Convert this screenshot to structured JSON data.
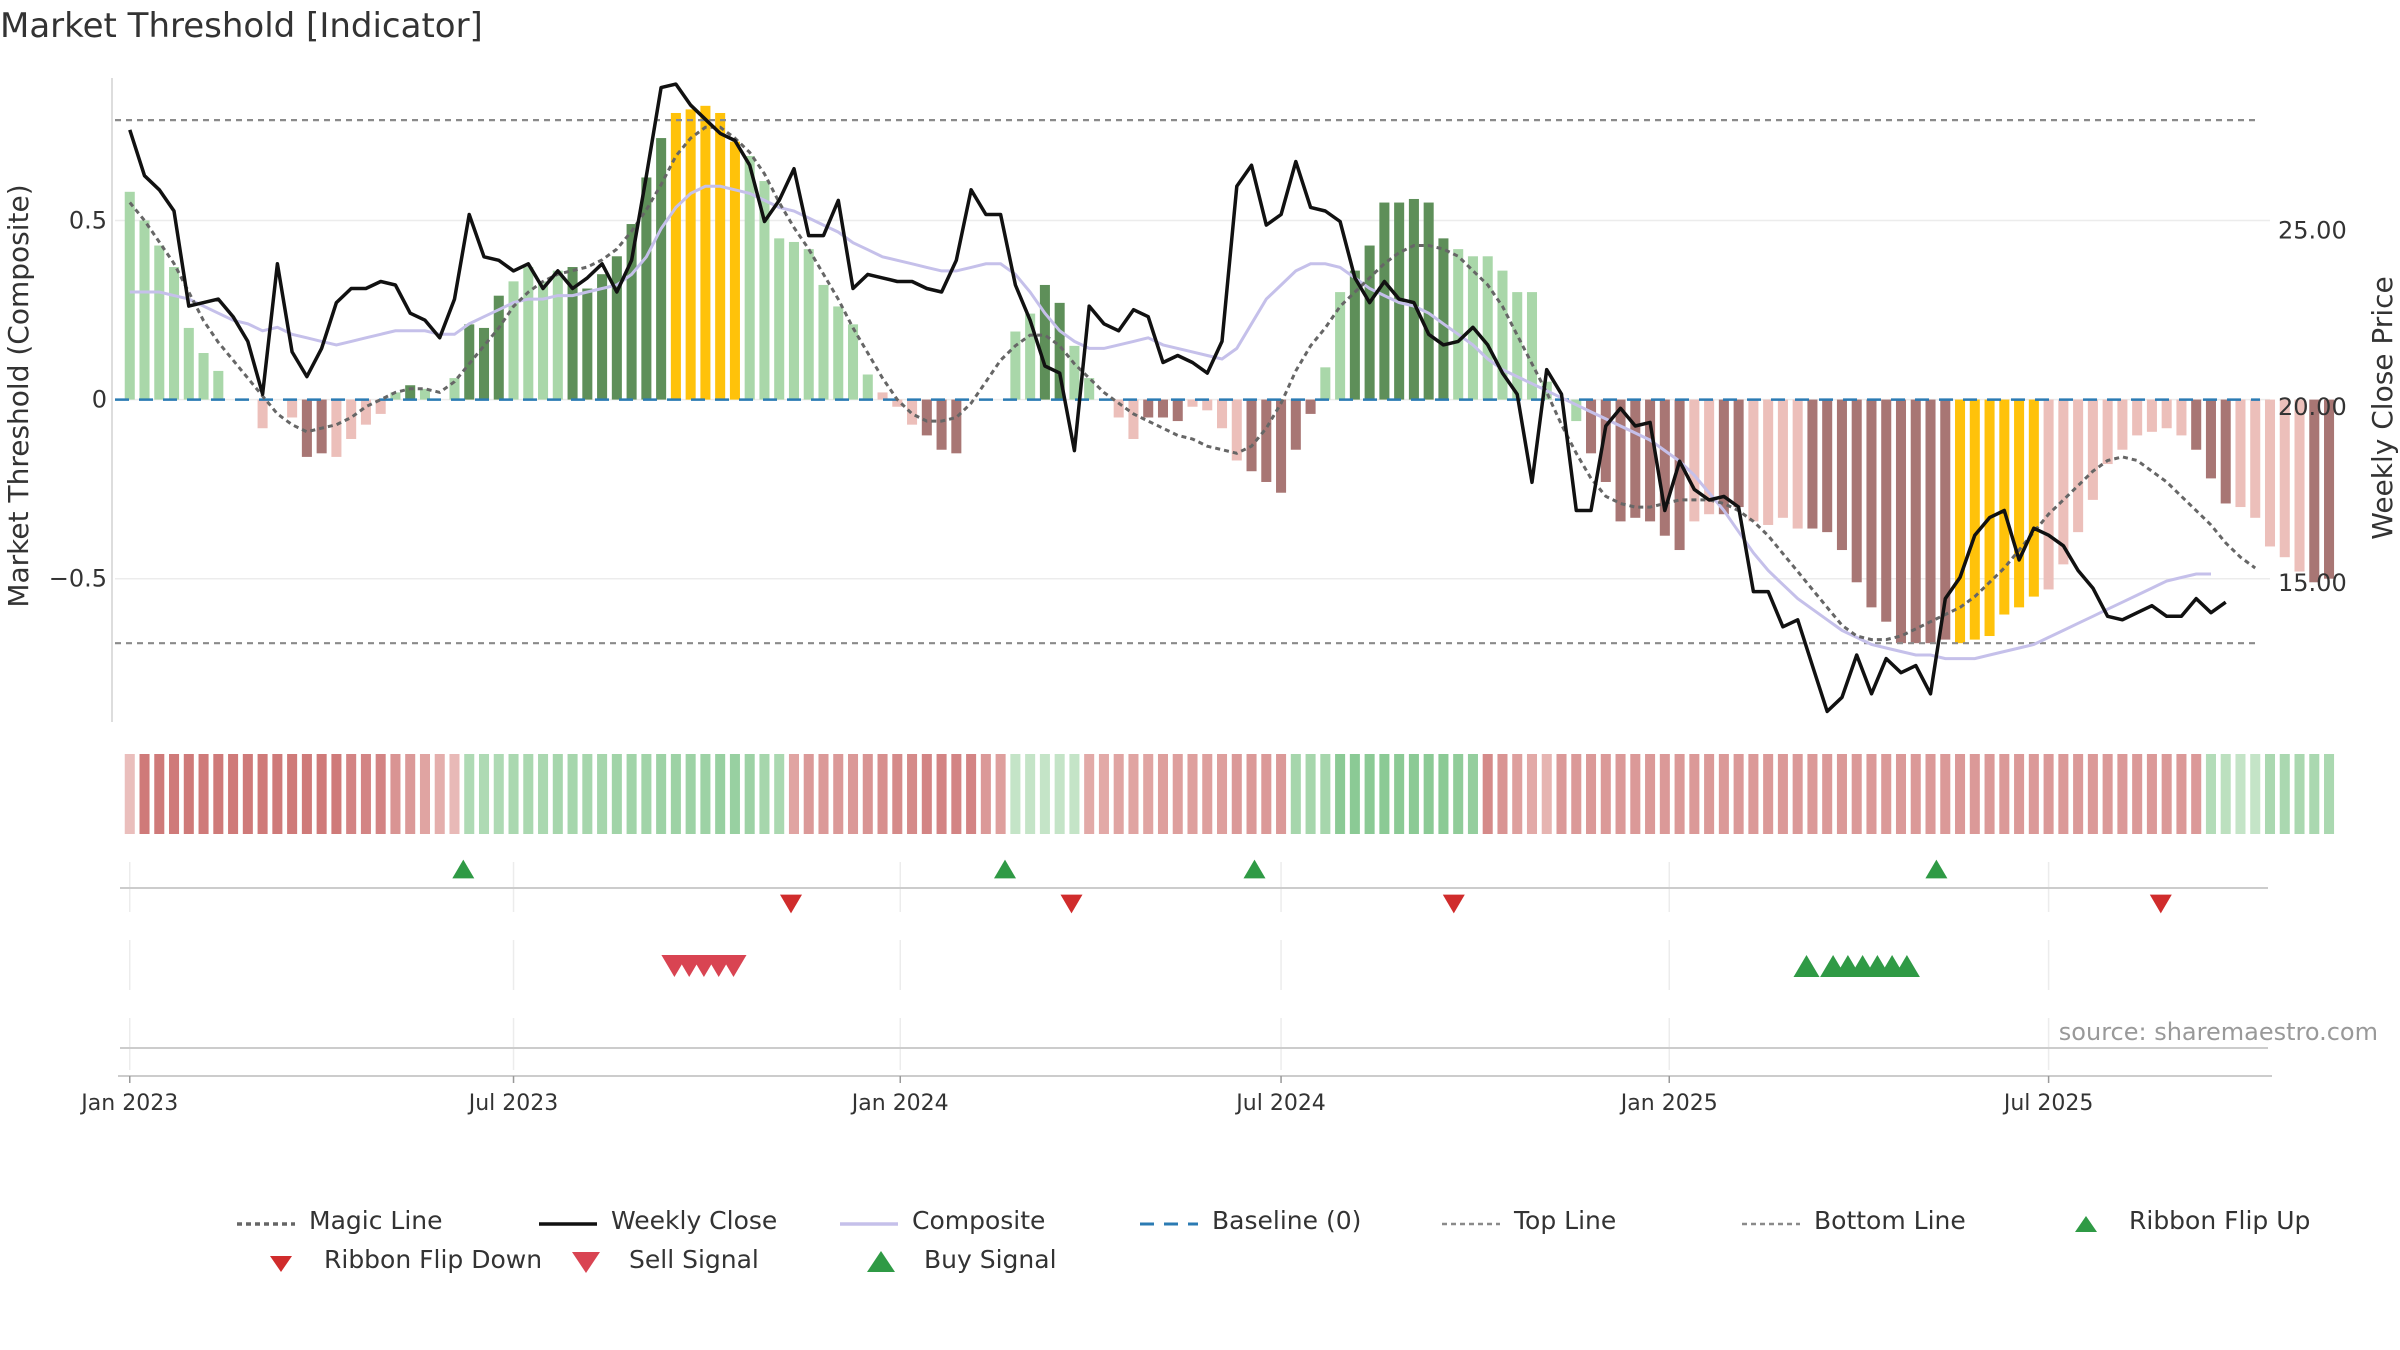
{
  "title": "Market Threshold [Indicator]",
  "source": "source: sharemaestro.com",
  "colors": {
    "bar_pos_light": "#a9d7a9",
    "bar_pos_dark": "#5e8f59",
    "bar_neg_light": "#ecbfba",
    "bar_neg_dark": "#a87674",
    "bar_extreme": "#ffc20a",
    "weekly_close": "#111111",
    "composite": "#c5c0ea",
    "magic_line": "#666666",
    "baseline": "#2b7bb3",
    "threshold_lines": "#8a8a8a",
    "buy": "#2f9a45",
    "sell": "#d94452",
    "flip_up": "#2f9a45",
    "flip_down": "#d02c2c",
    "ribbon_red_strong": "#c96a6a",
    "ribbon_red_light": "#f2d3d0",
    "ribbon_green_strong": "#7ec48a",
    "ribbon_green_light": "#d6ecd6"
  },
  "chart_data": {
    "type": "bar",
    "title": "Market Threshold [Indicator]",
    "ylabel": "Market Threshold (Composite)",
    "y2label": "Weekly Close Price",
    "ylim": [
      -0.9,
      0.92
    ],
    "y2lim": [
      11.0,
      29.5
    ],
    "yticks": [
      {
        "v": 0.5,
        "label": "0.5"
      },
      {
        "v": 0,
        "label": "0"
      },
      {
        "v": -0.5,
        "label": "−0.5"
      }
    ],
    "y2ticks": [
      {
        "v": 25,
        "label": "25.00"
      },
      {
        "v": 20,
        "label": "20.00"
      },
      {
        "v": 15,
        "label": "15.00"
      }
    ],
    "x_range": [
      -1,
      145
    ],
    "x_ticks": [
      {
        "label": "Jan 2023",
        "week": 0
      },
      {
        "label": "Jul 2023",
        "week": 26
      },
      {
        "label": "Jan 2024",
        "week": 52.2
      },
      {
        "label": "Jul 2024",
        "week": 78
      },
      {
        "label": "Jan 2025",
        "week": 104.3
      },
      {
        "label": "Jul 2025",
        "week": 130
      }
    ],
    "top_line": 0.78,
    "bottom_line": -0.68,
    "baseline": 0,
    "bar_kind_codes": {
      "g": "positive light",
      "G": "positive dark",
      "r": "negative light",
      "R": "negative dark",
      "Y": "extreme"
    },
    "bar_values": [
      0.58,
      0.5,
      0.43,
      0.37,
      0.2,
      0.13,
      0.08,
      0,
      0,
      -0.08,
      0,
      -0.05,
      -0.16,
      -0.15,
      -0.16,
      -0.11,
      -0.07,
      -0.04,
      0.02,
      0.04,
      0.03,
      0,
      0.06,
      0.21,
      0.2,
      0.29,
      0.33,
      0.37,
      0.33,
      0.36,
      0.37,
      0.31,
      0.35,
      0.4,
      0.49,
      0.62,
      0.73,
      0.8,
      0.81,
      0.82,
      0.8,
      0.72,
      0.68,
      0.61,
      0.45,
      0.44,
      0.42,
      0.32,
      0.26,
      0.21,
      0.07,
      0.02,
      -0.02,
      -0.07,
      -0.1,
      -0.14,
      -0.15,
      0,
      0,
      0,
      0.19,
      0.24,
      0.32,
      0.27,
      0.15,
      0.06,
      0,
      -0.05,
      -0.11,
      -0.05,
      -0.05,
      -0.06,
      -0.02,
      -0.03,
      -0.08,
      -0.17,
      -0.2,
      -0.23,
      -0.26,
      -0.14,
      -0.04,
      0.09,
      0.3,
      0.36,
      0.43,
      0.55,
      0.55,
      0.56,
      0.55,
      0.45,
      0.42,
      0.4,
      0.4,
      0.36,
      0.3,
      0.3,
      0.05,
      0,
      -0.06,
      -0.15,
      -0.23,
      -0.34,
      -0.33,
      -0.34,
      -0.38,
      -0.42,
      -0.34,
      -0.32,
      -0.32,
      -0.3,
      -0.34,
      -0.35,
      -0.33,
      -0.36,
      -0.36,
      -0.37,
      -0.42,
      -0.51,
      -0.58,
      -0.62,
      -0.68,
      -0.68,
      -0.68,
      -0.67,
      -0.68,
      -0.67,
      -0.66,
      -0.6,
      -0.58,
      -0.55,
      -0.53,
      -0.46,
      -0.37,
      -0.28,
      -0.18,
      -0.14,
      -0.1,
      -0.09,
      -0.08,
      -0.1,
      -0.14,
      -0.22,
      -0.29,
      -0.3,
      -0.33,
      -0.41,
      -0.44,
      -0.48,
      -0.51,
      -0.5
    ],
    "bar_kinds": "ggggggggrrrrRRrrrrgGgggGGGggggGGGGGGGYYYYYgggggggggrrrRRRrrrggGGggrrrRRRrrrrRRRRRggGGGGGGGgggggggggRRRRRRRrrRRrrrrRRRRRRRRRRYYYYYYrrrrrrrrrrRRRrrrrrRRRRRRRRRRRRR",
    "weekly_close": [
      27.8,
      26.5,
      26.1,
      25.5,
      22.8,
      22.9,
      23.0,
      22.5,
      21.8,
      20.3,
      24.0,
      21.5,
      20.8,
      21.6,
      22.9,
      23.3,
      23.3,
      23.5,
      23.4,
      22.6,
      22.4,
      21.9,
      23.0,
      25.4,
      24.2,
      24.1,
      23.8,
      24.0,
      23.3,
      23.8,
      23.3,
      23.6,
      24.0,
      23.2,
      24.1,
      26.5,
      29.0,
      29.1,
      28.5,
      28.1,
      27.7,
      27.5,
      26.8,
      25.2,
      25.8,
      26.7,
      24.8,
      24.8,
      25.8,
      23.3,
      23.7,
      23.6,
      23.5,
      23.5,
      23.3,
      23.2,
      24.1,
      26.1,
      25.4,
      25.4,
      23.4,
      22.4,
      21.1,
      20.9,
      18.7,
      22.8,
      22.3,
      22.1,
      22.7,
      22.5,
      21.2,
      21.4,
      21.2,
      20.9,
      21.8,
      26.2,
      26.8,
      25.1,
      25.4,
      26.9,
      25.6,
      25.5,
      25.2,
      23.6,
      22.9,
      23.5,
      23.0,
      22.9,
      22.0,
      21.7,
      21.8,
      22.2,
      21.7,
      20.9,
      20.3,
      17.8,
      21.0,
      20.3,
      17.0,
      17.0,
      19.4,
      19.9,
      19.4,
      19.5,
      17.0,
      18.4,
      17.6,
      17.3,
      17.4,
      17.1,
      14.7,
      14.7,
      13.7,
      13.9,
      12.6,
      11.3,
      11.7,
      12.9,
      11.8,
      12.8,
      12.4,
      12.6,
      11.8,
      14.5,
      15.1,
      16.3,
      16.8,
      17.0,
      15.6,
      16.5,
      16.3,
      16.0,
      15.3,
      14.8,
      14.0,
      13.9,
      14.1,
      14.3,
      14.0,
      14.0,
      14.5,
      14.1,
      14.4
    ],
    "composite": [
      23.2,
      23.2,
      23.2,
      23.1,
      23.0,
      22.8,
      22.6,
      22.4,
      22.3,
      22.1,
      22.2,
      22.0,
      21.9,
      21.8,
      21.7,
      21.8,
      21.9,
      22.0,
      22.1,
      22.1,
      22.1,
      22.0,
      22.0,
      22.3,
      22.5,
      22.7,
      22.9,
      23.0,
      23.0,
      23.1,
      23.1,
      23.2,
      23.3,
      23.4,
      23.7,
      24.2,
      25.0,
      25.6,
      26.0,
      26.2,
      26.2,
      26.1,
      26.0,
      25.8,
      25.6,
      25.5,
      25.3,
      25.1,
      24.9,
      24.6,
      24.4,
      24.2,
      24.1,
      24.0,
      23.9,
      23.8,
      23.8,
      23.9,
      24.0,
      24.0,
      23.7,
      23.2,
      22.6,
      22.1,
      21.8,
      21.6,
      21.6,
      21.7,
      21.8,
      21.9,
      21.7,
      21.6,
      21.5,
      21.4,
      21.3,
      21.6,
      22.3,
      23.0,
      23.4,
      23.8,
      24.0,
      24.0,
      23.9,
      23.6,
      23.3,
      23.1,
      22.9,
      22.8,
      22.6,
      22.3,
      22.0,
      21.7,
      21.3,
      21.0,
      20.8,
      20.6,
      20.4,
      20.2,
      20.0,
      19.8,
      19.6,
      19.4,
      19.2,
      19.0,
      18.7,
      18.4,
      18.0,
      17.5,
      17.0,
      16.4,
      15.8,
      15.3,
      14.9,
      14.5,
      14.2,
      13.9,
      13.6,
      13.4,
      13.2,
      13.1,
      13.0,
      12.9,
      12.9,
      12.8,
      12.8,
      12.8,
      12.9,
      13.0,
      13.1,
      13.2,
      13.4,
      13.6,
      13.8,
      14.0,
      14.2,
      14.4,
      14.6,
      14.8,
      15.0,
      15.1,
      15.2,
      15.2
    ],
    "magic_line": [
      0.55,
      0.5,
      0.44,
      0.38,
      0.3,
      0.22,
      0.16,
      0.11,
      0.06,
      0.01,
      -0.04,
      -0.07,
      -0.09,
      -0.08,
      -0.07,
      -0.05,
      -0.02,
      0,
      0.02,
      0.03,
      0.03,
      0.02,
      0.05,
      0.1,
      0.15,
      0.2,
      0.26,
      0.3,
      0.33,
      0.35,
      0.36,
      0.37,
      0.39,
      0.42,
      0.47,
      0.53,
      0.6,
      0.68,
      0.73,
      0.76,
      0.76,
      0.73,
      0.69,
      0.63,
      0.55,
      0.48,
      0.42,
      0.35,
      0.28,
      0.2,
      0.13,
      0.06,
      0,
      -0.04,
      -0.06,
      -0.06,
      -0.05,
      -0.01,
      0.05,
      0.11,
      0.15,
      0.18,
      0.18,
      0.15,
      0.1,
      0.06,
      0.02,
      -0.01,
      -0.04,
      -0.06,
      -0.08,
      -0.1,
      -0.11,
      -0.13,
      -0.14,
      -0.15,
      -0.13,
      -0.08,
      -0.01,
      0.08,
      0.15,
      0.2,
      0.26,
      0.3,
      0.34,
      0.38,
      0.41,
      0.43,
      0.43,
      0.42,
      0.4,
      0.36,
      0.32,
      0.26,
      0.18,
      0.1,
      0.02,
      -0.07,
      -0.15,
      -0.22,
      -0.27,
      -0.29,
      -0.3,
      -0.3,
      -0.29,
      -0.28,
      -0.28,
      -0.28,
      -0.29,
      -0.31,
      -0.34,
      -0.38,
      -0.43,
      -0.48,
      -0.53,
      -0.58,
      -0.63,
      -0.66,
      -0.67,
      -0.67,
      -0.66,
      -0.64,
      -0.62,
      -0.6,
      -0.58,
      -0.55,
      -0.51,
      -0.47,
      -0.42,
      -0.37,
      -0.32,
      -0.28,
      -0.24,
      -0.2,
      -0.17,
      -0.16,
      -0.17,
      -0.2,
      -0.23,
      -0.27,
      -0.31,
      -0.35,
      -0.4,
      -0.44,
      -0.47
    ],
    "ribbon_codes": {
      "R": "red strong",
      "r": "red light",
      "G": "green strong",
      "g": "green light"
    },
    "ribbon_shades": [
      0.2,
      0.85,
      0.85,
      0.85,
      0.85,
      0.85,
      0.85,
      0.85,
      0.85,
      0.85,
      0.85,
      0.85,
      0.85,
      0.85,
      0.85,
      0.75,
      0.75,
      0.75,
      0.6,
      0.55,
      0.45,
      0.35,
      0.25,
      0.45,
      0.45,
      0.45,
      0.5,
      0.5,
      0.5,
      0.55,
      0.55,
      0.55,
      0.55,
      0.6,
      0.6,
      0.6,
      0.65,
      0.65,
      0.65,
      0.65,
      0.7,
      0.7,
      0.65,
      0.55,
      0.5,
      0.45,
      0.55,
      0.55,
      0.55,
      0.55,
      0.6,
      0.65,
      0.7,
      0.7,
      0.75,
      0.75,
      0.75,
      0.75,
      0.55,
      0.5,
      0.2,
      0.2,
      0.2,
      0.2,
      0.2,
      0.4,
      0.4,
      0.45,
      0.45,
      0.45,
      0.5,
      0.5,
      0.5,
      0.5,
      0.5,
      0.55,
      0.55,
      0.55,
      0.55,
      0.55,
      0.55,
      0.55,
      0.85,
      0.85,
      0.85,
      0.85,
      0.85,
      0.85,
      0.85,
      0.85,
      0.8,
      0.75,
      0.7,
      0.6,
      0.5,
      0.4,
      0.3,
      0.55,
      0.55,
      0.55,
      0.55,
      0.55,
      0.55,
      0.55,
      0.55,
      0.55,
      0.55,
      0.55,
      0.55,
      0.55,
      0.55,
      0.55,
      0.55,
      0.55,
      0.55,
      0.55,
      0.55,
      0.55,
      0.55,
      0.55,
      0.55,
      0.55,
      0.55,
      0.55,
      0.55,
      0.55,
      0.55,
      0.55,
      0.55,
      0.55,
      0.55,
      0.55,
      0.55,
      0.55,
      0.55,
      0.55,
      0.55,
      0.55,
      0.55,
      0.55,
      0.55,
      0.4,
      0.3,
      0.2,
      0.2
    ],
    "ribbon_kinds": "rRRRRRRRRRRRRRRRRRRRRRRggggggggggggggggggggggRRRRRRRRRRRRRRRgggggRRRRRRRRRRRRRRGGGGGGGGGGGGGRRRRRRRRRRRRRRRRRRRRRRRRRRRRRRRRRRRRRRRRRRRRRRRRRGGGGGGGGGGGGGGrrrrrrr",
    "ribbon_flip_up_weeks": [
      22.6,
      59.3,
      76.2,
      122.4
    ],
    "ribbon_flip_down_weeks": [
      44.8,
      63.8,
      89.7,
      137.6
    ],
    "sell_signal_weeks": [
      36.9,
      37.9,
      38.9,
      39.9,
      40.9
    ],
    "buy_signal_weeks": [
      113.6,
      115.4,
      116.4,
      117.4,
      118.4,
      119.4,
      120.4
    ],
    "legend": [
      {
        "key": "magic",
        "label": "Magic Line"
      },
      {
        "key": "close",
        "label": "Weekly Close"
      },
      {
        "key": "composite",
        "label": "Composite"
      },
      {
        "key": "baseline",
        "label": "Baseline (0)"
      },
      {
        "key": "top",
        "label": "Top Line"
      },
      {
        "key": "bottom",
        "label": "Bottom Line"
      },
      {
        "key": "flipup",
        "label": "Ribbon Flip Up"
      },
      {
        "key": "flipdown",
        "label": "Ribbon Flip Down"
      },
      {
        "key": "sell",
        "label": "Sell Signal"
      },
      {
        "key": "buy",
        "label": "Buy Signal"
      }
    ]
  }
}
